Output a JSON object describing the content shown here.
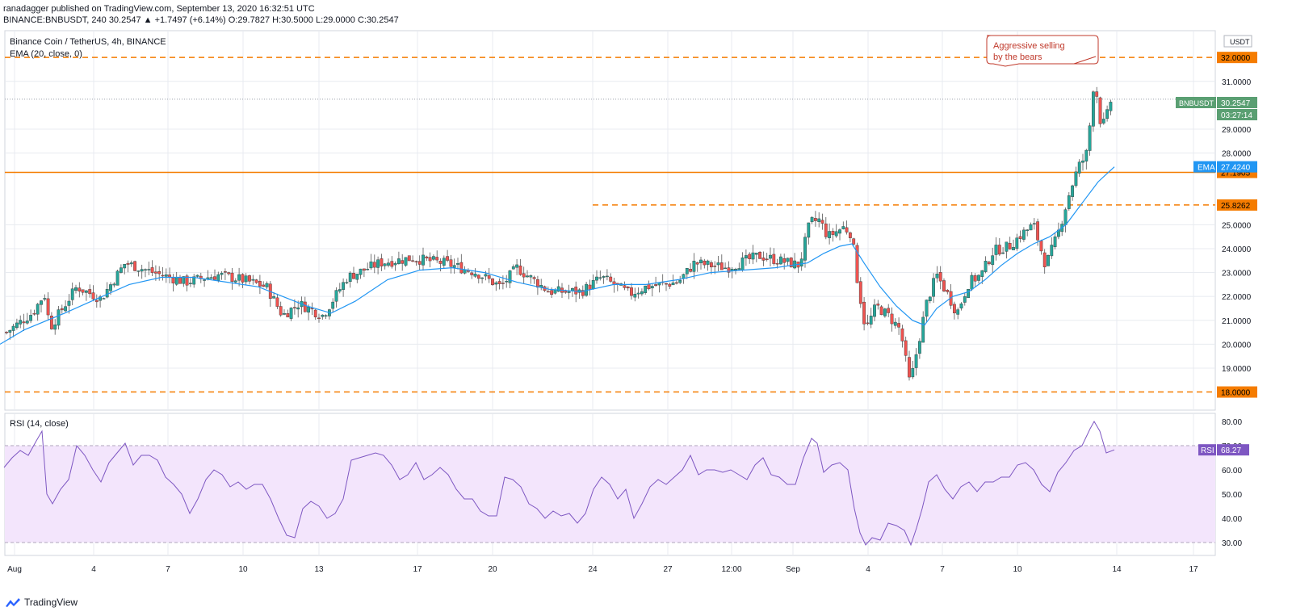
{
  "header": {
    "line1": "ranadagger published on TradingView.com, September 13, 2020 16:32:51 UTC",
    "line2": "BINANCE:BNBUSDT, 240  30.2547  ▲ +1.7497 (+6.14%)  O:29.7827  H:30.5000  L:29.0000  C:30.2547"
  },
  "footer": {
    "brand": "TradingView"
  },
  "colors": {
    "up": "#26a69a",
    "down": "#ef5350",
    "ema": "#2196f3",
    "rsi": "#7e57c2",
    "rsi_band": "#f3e5fc",
    "level": "#f57c00",
    "price_tag": "#5a9f72",
    "annotation": "#c0392b",
    "grid": "#e8ebf0"
  },
  "chart_data": [
    {
      "type": "candlestick",
      "title": "Binance Coin / TetherUS, 4h, BINANCE",
      "indicator_label": "EMA (20, close, 0)",
      "symbol_tag": "BNBUSDT",
      "currency": "USDT",
      "last_price": "30.2547",
      "countdown": "03:27:14",
      "ema_tag": {
        "label": "EMA",
        "value": "27.4240"
      },
      "y_ticks": [
        "19.0000",
        "20.0000",
        "21.0000",
        "22.0000",
        "23.0000",
        "24.0000",
        "25.0000",
        "28.0000",
        "29.0000",
        "31.0000"
      ],
      "x_ticks": [
        "Aug",
        "4",
        "7",
        "10",
        "13",
        "17",
        "20",
        "24",
        "27",
        "12:00",
        "Sep",
        "4",
        "7",
        "10",
        "14",
        "17"
      ],
      "levels": [
        {
          "price": 32.0,
          "label": "32.0000",
          "style": "dashed"
        },
        {
          "price": 27.1905,
          "label": "27.1905",
          "style": "solid"
        },
        {
          "price": 25.8262,
          "label": "25.8262",
          "style": "dashed"
        },
        {
          "price": 18.0,
          "label": "18.0000",
          "style": "dashed"
        }
      ],
      "annotation": "Aggressive selling by the bears",
      "ylim": [
        17.7,
        32.9
      ],
      "series_ema_key": [
        [
          0,
          20.0
        ],
        [
          30,
          20.6
        ],
        [
          80,
          21.3
        ],
        [
          120,
          21.9
        ],
        [
          160,
          22.5
        ],
        [
          200,
          22.8
        ],
        [
          240,
          22.8
        ],
        [
          280,
          22.6
        ],
        [
          320,
          22.4
        ],
        [
          350,
          22.0
        ],
        [
          380,
          21.6
        ],
        [
          410,
          21.3
        ],
        [
          440,
          21.8
        ],
        [
          480,
          22.7
        ],
        [
          520,
          23.1
        ],
        [
          560,
          23.2
        ],
        [
          600,
          23.0
        ],
        [
          640,
          22.6
        ],
        [
          680,
          22.3
        ],
        [
          720,
          22.2
        ],
        [
          760,
          22.5
        ],
        [
          800,
          22.5
        ],
        [
          840,
          22.7
        ],
        [
          880,
          23.0
        ],
        [
          920,
          23.1
        ],
        [
          960,
          23.2
        ],
        [
          1000,
          23.4
        ],
        [
          1020,
          23.8
        ],
        [
          1040,
          24.1
        ],
        [
          1055,
          24.2
        ],
        [
          1070,
          23.4
        ],
        [
          1090,
          22.4
        ],
        [
          1110,
          21.6
        ],
        [
          1130,
          21.0
        ],
        [
          1145,
          20.8
        ],
        [
          1160,
          21.5
        ],
        [
          1180,
          22.0
        ],
        [
          1200,
          22.2
        ],
        [
          1220,
          22.7
        ],
        [
          1240,
          23.3
        ],
        [
          1260,
          23.8
        ],
        [
          1280,
          24.2
        ],
        [
          1300,
          24.5
        ],
        [
          1320,
          25.0
        ],
        [
          1340,
          25.9
        ],
        [
          1360,
          26.8
        ],
        [
          1380,
          27.42
        ]
      ]
    },
    {
      "type": "line",
      "title": "RSI (14, close)",
      "rsi_tag": {
        "label": "RSI",
        "value": "68.27"
      },
      "y_ticks": [
        "30.00",
        "40.00",
        "50.00",
        "60.00",
        "70.00",
        "80.00"
      ],
      "band": [
        30,
        70
      ],
      "ylim": [
        27,
        82
      ],
      "series_key": [
        [
          5,
          61
        ],
        [
          15,
          65
        ],
        [
          25,
          68
        ],
        [
          35,
          66
        ],
        [
          45,
          72
        ],
        [
          52,
          76
        ],
        [
          58,
          50
        ],
        [
          65,
          46
        ],
        [
          75,
          52
        ],
        [
          85,
          56
        ],
        [
          95,
          70
        ],
        [
          105,
          66
        ],
        [
          115,
          60
        ],
        [
          125,
          55
        ],
        [
          135,
          63
        ],
        [
          145,
          67
        ],
        [
          155,
          71
        ],
        [
          165,
          62
        ],
        [
          175,
          66
        ],
        [
          185,
          66
        ],
        [
          195,
          64
        ],
        [
          205,
          57
        ],
        [
          215,
          54
        ],
        [
          225,
          50
        ],
        [
          235,
          42
        ],
        [
          245,
          48
        ],
        [
          255,
          56
        ],
        [
          265,
          60
        ],
        [
          275,
          58
        ],
        [
          285,
          53
        ],
        [
          295,
          55
        ],
        [
          305,
          52
        ],
        [
          315,
          54
        ],
        [
          325,
          54
        ],
        [
          335,
          48
        ],
        [
          345,
          40
        ],
        [
          355,
          33
        ],
        [
          365,
          32
        ],
        [
          375,
          44
        ],
        [
          385,
          47
        ],
        [
          395,
          45
        ],
        [
          405,
          40
        ],
        [
          415,
          42
        ],
        [
          425,
          48
        ],
        [
          435,
          64
        ],
        [
          445,
          65
        ],
        [
          455,
          66
        ],
        [
          465,
          67
        ],
        [
          475,
          66
        ],
        [
          485,
          62
        ],
        [
          495,
          56
        ],
        [
          505,
          58
        ],
        [
          515,
          63
        ],
        [
          525,
          56
        ],
        [
          535,
          58
        ],
        [
          545,
          61
        ],
        [
          555,
          58
        ],
        [
          565,
          52
        ],
        [
          575,
          48
        ],
        [
          585,
          48
        ],
        [
          595,
          43
        ],
        [
          605,
          41
        ],
        [
          615,
          41
        ],
        [
          625,
          57
        ],
        [
          635,
          56
        ],
        [
          645,
          53
        ],
        [
          655,
          46
        ],
        [
          665,
          44
        ],
        [
          675,
          40
        ],
        [
          685,
          43
        ],
        [
          695,
          41
        ],
        [
          705,
          42
        ],
        [
          715,
          38
        ],
        [
          725,
          42
        ],
        [
          735,
          52
        ],
        [
          745,
          57
        ],
        [
          755,
          54
        ],
        [
          765,
          48
        ],
        [
          775,
          52
        ],
        [
          785,
          40
        ],
        [
          795,
          46
        ],
        [
          805,
          53
        ],
        [
          815,
          56
        ],
        [
          825,
          54
        ],
        [
          835,
          57
        ],
        [
          845,
          60
        ],
        [
          855,
          66
        ],
        [
          865,
          58
        ],
        [
          875,
          60
        ],
        [
          885,
          60
        ],
        [
          895,
          59
        ],
        [
          905,
          60
        ],
        [
          915,
          58
        ],
        [
          925,
          56
        ],
        [
          935,
          62
        ],
        [
          945,
          65
        ],
        [
          955,
          58
        ],
        [
          965,
          57
        ],
        [
          975,
          54
        ],
        [
          985,
          54
        ],
        [
          995,
          65
        ],
        [
          1005,
          73
        ],
        [
          1012,
          71
        ],
        [
          1020,
          59
        ],
        [
          1030,
          62
        ],
        [
          1040,
          63
        ],
        [
          1050,
          60
        ],
        [
          1058,
          44
        ],
        [
          1065,
          34
        ],
        [
          1072,
          29
        ],
        [
          1080,
          32
        ],
        [
          1090,
          31
        ],
        [
          1100,
          38
        ],
        [
          1110,
          37
        ],
        [
          1120,
          35
        ],
        [
          1128,
          29
        ],
        [
          1135,
          36
        ],
        [
          1142,
          44
        ],
        [
          1150,
          55
        ],
        [
          1160,
          58
        ],
        [
          1170,
          52
        ],
        [
          1180,
          48
        ],
        [
          1190,
          53
        ],
        [
          1200,
          55
        ],
        [
          1210,
          51
        ],
        [
          1220,
          55
        ],
        [
          1230,
          55
        ],
        [
          1240,
          57
        ],
        [
          1250,
          57
        ],
        [
          1260,
          62
        ],
        [
          1270,
          63
        ],
        [
          1280,
          60
        ],
        [
          1290,
          54
        ],
        [
          1300,
          51
        ],
        [
          1310,
          59
        ],
        [
          1320,
          63
        ],
        [
          1330,
          68
        ],
        [
          1340,
          70
        ],
        [
          1350,
          77
        ],
        [
          1355,
          80
        ],
        [
          1362,
          76
        ],
        [
          1370,
          67
        ],
        [
          1380,
          68.27
        ]
      ]
    }
  ]
}
